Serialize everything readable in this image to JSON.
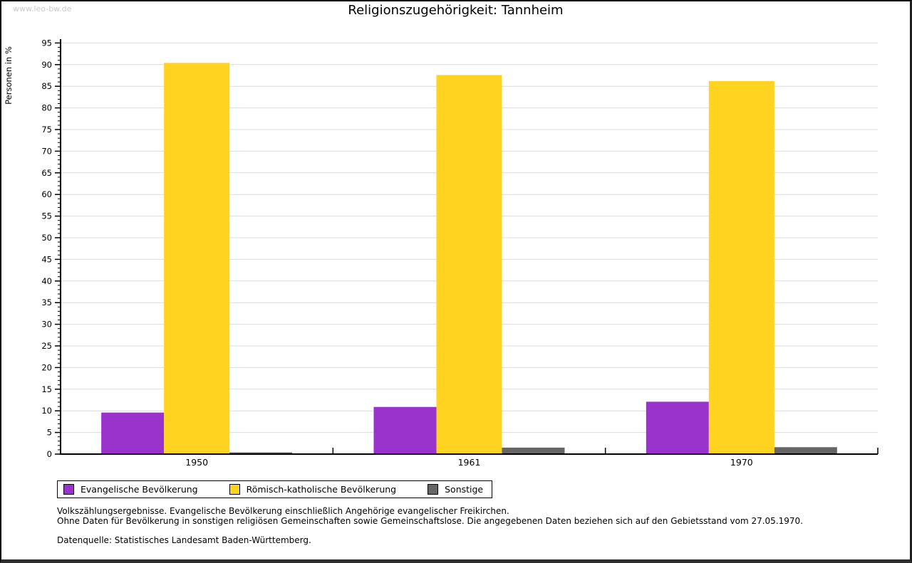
{
  "watermark": "www.leo-bw.de",
  "title": "Religionszugehörigkeit: Tannheim",
  "chart_data": {
    "type": "bar",
    "title": "Religionszugehörigkeit: Tannheim",
    "ylabel": "Personen in %",
    "categories": [
      "1950",
      "1961",
      "1970"
    ],
    "series": [
      {
        "name": "Evangelische Bevölkerung",
        "color": "#9933CC",
        "values": [
          9.6,
          10.9,
          12.1
        ]
      },
      {
        "name": "Römisch-katholische Bevölkerung",
        "color": "#FFD320",
        "values": [
          90.4,
          87.6,
          86.2
        ]
      },
      {
        "name": "Sonstige",
        "color": "#666666",
        "values": [
          0.4,
          1.5,
          1.6
        ]
      }
    ],
    "ylim": [
      0,
      95
    ],
    "ytick_step": 5,
    "yminor_step": 1,
    "grid": true,
    "gridline_color": "#dcdcdc",
    "axis_color": "#000000",
    "legend_position": "bottom"
  },
  "footnotes": {
    "line1": "Volkszählungsergebnisse. Evangelische Bevölkerung einschließlich Angehörige evangelischer Freikirchen.",
    "line2": "Ohne Daten für Bevölkerung in sonstigen religiösen Gemeinschaften sowie Gemeinschaftslose. Die angegebenen Daten beziehen sich auf den Gebietsstand vom 27.05.1970.",
    "source": "Datenquelle: Statistisches Landesamt Baden-Württemberg."
  }
}
